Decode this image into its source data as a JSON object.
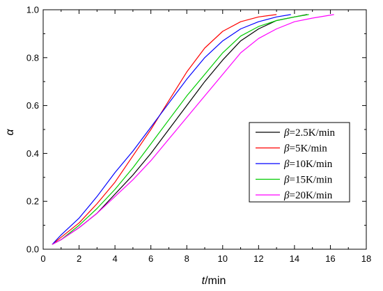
{
  "chart_data": {
    "type": "line",
    "xlabel": {
      "italic": "t",
      "rest": "/min"
    },
    "ylabel": "α",
    "xlim": [
      0,
      18
    ],
    "ylim": [
      0,
      1.0
    ],
    "xticks": [
      0,
      2,
      4,
      6,
      8,
      10,
      12,
      14,
      16,
      18
    ],
    "xtick_labels": [
      "0",
      "2",
      "4",
      "6",
      "8",
      "10",
      "12",
      "14",
      "16",
      "18"
    ],
    "yticks": [
      0.0,
      0.2,
      0.4,
      0.6,
      0.8,
      1.0
    ],
    "ytick_labels": [
      "0.0",
      "0.2",
      "0.4",
      "0.6",
      "0.8",
      "1.0"
    ],
    "grid": false,
    "legend_position": "center-right",
    "series": [
      {
        "name": "β=2.5K/min",
        "legend_parts": [
          "β",
          "=2.5K/min"
        ],
        "color": "#000000",
        "x": [
          0.5,
          1,
          2,
          3,
          4,
          5,
          6,
          7,
          8,
          9,
          10,
          11,
          12,
          13,
          14,
          14.7
        ],
        "y": [
          0.02,
          0.04,
          0.09,
          0.15,
          0.23,
          0.31,
          0.4,
          0.5,
          0.6,
          0.7,
          0.79,
          0.87,
          0.92,
          0.955,
          0.97,
          0.98
        ]
      },
      {
        "name": "β=5K/min",
        "legend_parts": [
          "β",
          "=5K/min"
        ],
        "color": "#ff0000",
        "x": [
          0.5,
          1,
          2,
          3,
          4,
          5,
          6,
          7,
          8,
          9,
          10,
          11,
          12,
          13
        ],
        "y": [
          0.02,
          0.05,
          0.11,
          0.19,
          0.28,
          0.39,
          0.5,
          0.62,
          0.74,
          0.84,
          0.91,
          0.95,
          0.97,
          0.98
        ]
      },
      {
        "name": "β=10K/min",
        "legend_parts": [
          "β",
          "=10K/min"
        ],
        "color": "#0000ff",
        "x": [
          0.5,
          1,
          2,
          3,
          4,
          5,
          6,
          7,
          8,
          9,
          10,
          11,
          12,
          13,
          13.8
        ],
        "y": [
          0.02,
          0.06,
          0.13,
          0.22,
          0.32,
          0.41,
          0.51,
          0.61,
          0.71,
          0.8,
          0.87,
          0.92,
          0.95,
          0.97,
          0.98
        ]
      },
      {
        "name": "β=15K/min",
        "legend_parts": [
          "β",
          "=15K/min"
        ],
        "color": "#00cc00",
        "x": [
          0.5,
          1,
          2,
          3,
          4,
          5,
          6,
          7,
          8,
          9,
          10,
          11,
          12,
          13,
          14,
          14.8
        ],
        "y": [
          0.02,
          0.04,
          0.1,
          0.17,
          0.25,
          0.34,
          0.44,
          0.54,
          0.64,
          0.73,
          0.82,
          0.89,
          0.93,
          0.955,
          0.97,
          0.98
        ]
      },
      {
        "name": "β=20K/min",
        "legend_parts": [
          "β",
          "=20K/min"
        ],
        "color": "#ff00ff",
        "x": [
          0.5,
          1,
          2,
          3,
          4,
          5,
          6,
          7,
          8,
          9,
          10,
          11,
          12,
          13,
          14,
          15,
          16.2
        ],
        "y": [
          0.02,
          0.04,
          0.09,
          0.15,
          0.22,
          0.29,
          0.37,
          0.46,
          0.55,
          0.64,
          0.73,
          0.82,
          0.88,
          0.92,
          0.95,
          0.965,
          0.98
        ]
      }
    ]
  }
}
